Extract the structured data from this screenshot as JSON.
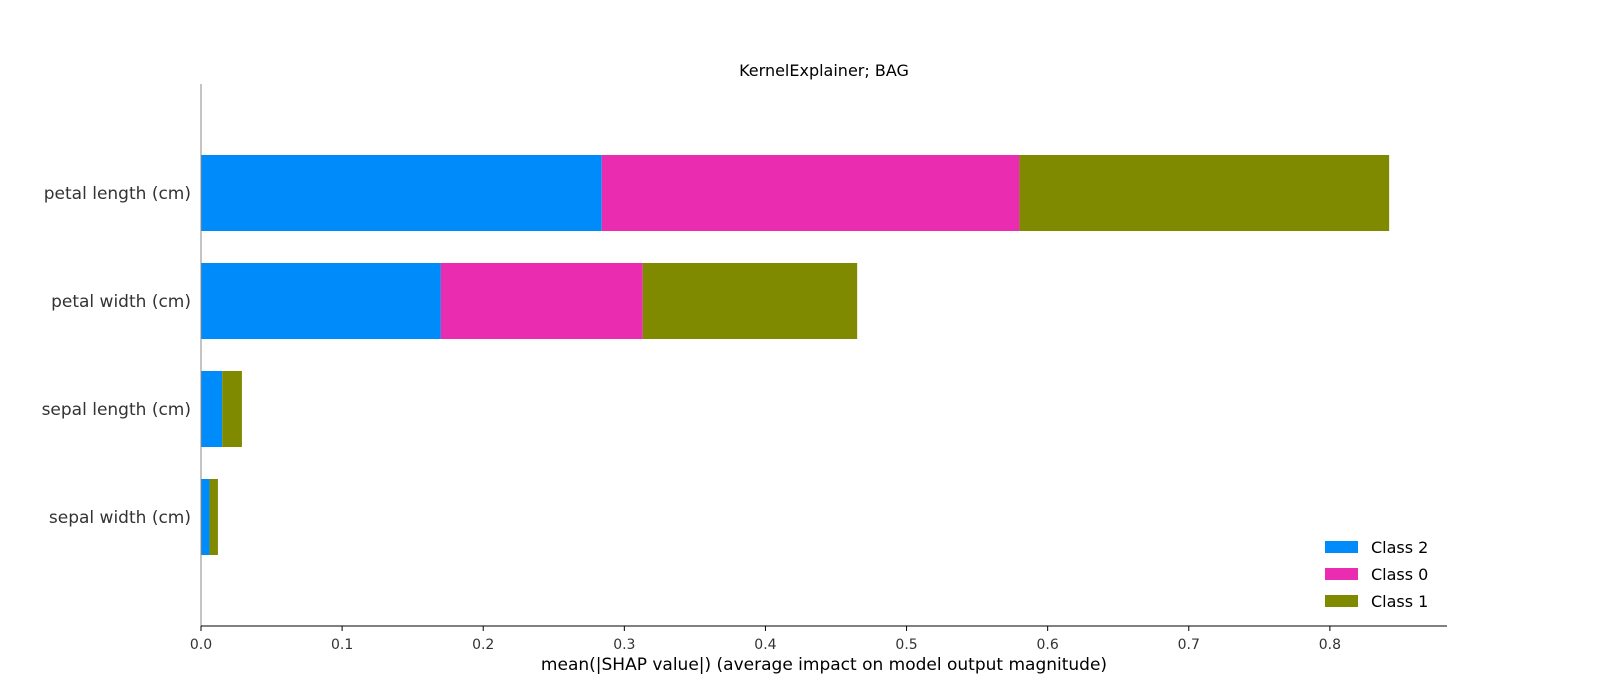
{
  "chart_data": {
    "type": "bar",
    "orientation": "horizontal",
    "stacked": true,
    "title": "KernelExplainer; BAG",
    "xlabel": "mean(|SHAP value|) (average impact on model output magnitude)",
    "ylabel": "",
    "xlim": [
      0,
      0.883
    ],
    "xticks": [
      "0.0",
      "0.1",
      "0.2",
      "0.3",
      "0.4",
      "0.5",
      "0.6",
      "0.7",
      "0.8"
    ],
    "categories": [
      "petal length (cm)",
      "petal width (cm)",
      "sepal length (cm)",
      "sepal width (cm)"
    ],
    "series": [
      {
        "name": "Class 2",
        "color": "#008bfb",
        "values": [
          0.284,
          0.17,
          0.015,
          0.006
        ]
      },
      {
        "name": "Class 0",
        "color": "#e92cb0",
        "values": [
          0.296,
          0.143,
          0.0,
          0.0
        ]
      },
      {
        "name": "Class 1",
        "color": "#808a00",
        "values": [
          0.262,
          0.152,
          0.014,
          0.006
        ]
      }
    ],
    "legend": {
      "position": "bottom-right",
      "entries": [
        "Class 2",
        "Class 0",
        "Class 1"
      ]
    },
    "grid": false
  }
}
